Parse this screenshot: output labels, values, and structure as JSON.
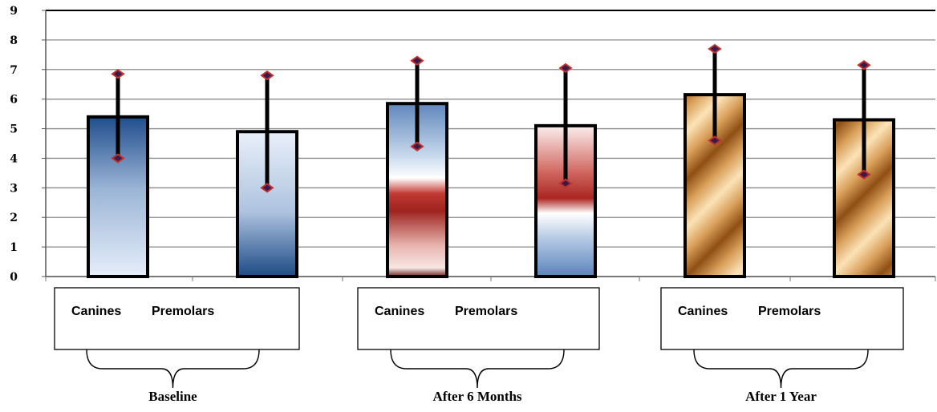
{
  "chart_data": {
    "type": "bar",
    "title": "",
    "xlabel": "",
    "ylabel": "",
    "ylim": [
      0,
      9
    ],
    "yticks": [
      "0",
      "1",
      "2",
      "3",
      "4",
      "5",
      "6",
      "7",
      "8",
      "9"
    ],
    "grid": true,
    "groups": [
      {
        "label": "Baseline",
        "legend_labels": [
          "Canines",
          "Premolars"
        ],
        "bars": [
          {
            "name": "Canines",
            "value": 5.4,
            "err_low": 4.0,
            "err_high": 6.85,
            "style": "blue-light"
          },
          {
            "name": "Premolars",
            "value": 4.9,
            "err_low": 3.0,
            "err_high": 6.8,
            "style": "blue-dark"
          }
        ]
      },
      {
        "label": "After 6 Months",
        "legend_labels": [
          "Canines",
          "Premolars"
        ],
        "bars": [
          {
            "name": "Canines",
            "value": 5.85,
            "err_low": 4.4,
            "err_high": 7.3,
            "style": "blue-red"
          },
          {
            "name": "Premolars",
            "value": 5.1,
            "err_low": 3.15,
            "err_high": 7.05,
            "style": "red-blue"
          }
        ]
      },
      {
        "label": "After 1 Year",
        "legend_labels": [
          "Canines",
          "Premolars"
        ],
        "bars": [
          {
            "name": "Canines",
            "value": 6.15,
            "err_low": 4.6,
            "err_high": 7.7,
            "style": "bronze"
          },
          {
            "name": "Premolars",
            "value": 5.3,
            "err_low": 3.45,
            "err_high": 7.15,
            "style": "bronze"
          }
        ]
      }
    ],
    "colors": {
      "bar_outline": "#000000",
      "grid": "#8c8c8c",
      "marker_outline": "#c0302c",
      "marker_fill": "#3a1a4a",
      "blue_dark": "#1f4e8c",
      "blue_light": "#e3ecf8",
      "red": "#b22a26",
      "bronze_dark": "#9a5a1c",
      "bronze_light": "#f6d7a4"
    }
  }
}
